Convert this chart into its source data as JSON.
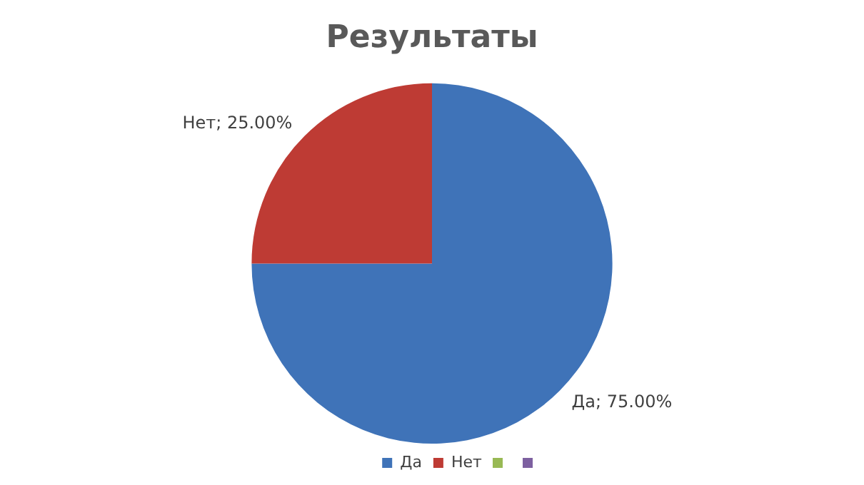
{
  "chart_data": {
    "type": "pie",
    "title": "Результаты",
    "categories": [
      "Да",
      "Нет"
    ],
    "values": [
      75,
      25
    ],
    "colors": [
      "#3f73b8",
      "#be3b34"
    ],
    "value_labels": [
      "Да; 75.00%",
      "Нет; 25.00%"
    ],
    "legend": "bottom"
  }
}
